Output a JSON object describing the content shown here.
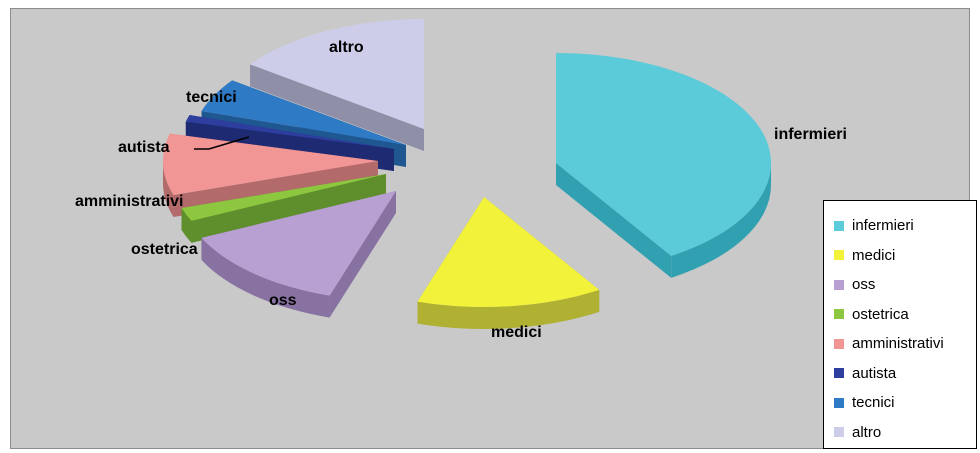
{
  "chart_data": {
    "type": "pie",
    "style": "3d-exploded",
    "title": "",
    "slices": [
      {
        "label": "infermieri",
        "value": 41.0,
        "color": "#5bcad9",
        "side": "#31a1b2"
      },
      {
        "label": "medici",
        "value": 14.0,
        "color": "#f2f23a",
        "side": "#b0b032"
      },
      {
        "label": "oss",
        "value": 13.0,
        "color": "#b9a0d2",
        "side": "#8772a2"
      },
      {
        "label": "ostetrica",
        "value": 2.0,
        "color": "#8dc63f",
        "side": "#5f8e2c"
      },
      {
        "label": "amministrativi",
        "value": 9.0,
        "color": "#f29595",
        "side": "#b36a6a"
      },
      {
        "label": "autista",
        "value": 1.0,
        "color": "#2e3e9e",
        "side": "#1e2a72"
      },
      {
        "label": "tecnici",
        "value": 5.0,
        "color": "#2f7ac4",
        "side": "#1f5791"
      },
      {
        "label": "altro",
        "value": 15.0,
        "color": "#cdcdea",
        "side": "#8f8fa8"
      }
    ],
    "legend": {
      "placement": "right"
    }
  }
}
